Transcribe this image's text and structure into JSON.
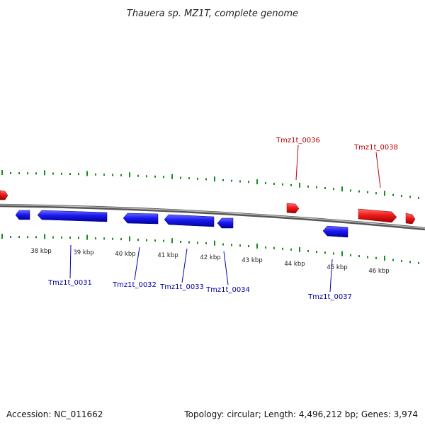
{
  "title": "Thauera sp. MZ1T, complete genome",
  "footer": {
    "accession": "Accession: NC_011662",
    "summary": "Topology: circular; Length: 4,496,212 bp; Genes: 3,974"
  },
  "colors": {
    "forward_gene": "#e81010",
    "reverse_gene": "#1010e0",
    "backbone": "#808080",
    "ticks": "#1a8a1a",
    "forward_label": "#bb0000",
    "reverse_label": "#0000aa"
  },
  "kbp_labels": [
    "38 kbp",
    "39 kbp",
    "40 kbp",
    "41 kbp",
    "42 kbp",
    "43 kbp",
    "44 kbp",
    "45 kbp",
    "46 kbp"
  ],
  "genes": [
    {
      "locus": "Tmz1t_0031",
      "strand": "reverse"
    },
    {
      "locus": "Tmz1t_0032",
      "strand": "reverse"
    },
    {
      "locus": "Tmz1t_0033",
      "strand": "reverse"
    },
    {
      "locus": "Tmz1t_0034",
      "strand": "reverse"
    },
    {
      "locus": "Tmz1t_0036",
      "strand": "forward"
    },
    {
      "locus": "Tmz1t_0037",
      "strand": "reverse"
    },
    {
      "locus": "Tmz1t_0038",
      "strand": "forward"
    }
  ]
}
